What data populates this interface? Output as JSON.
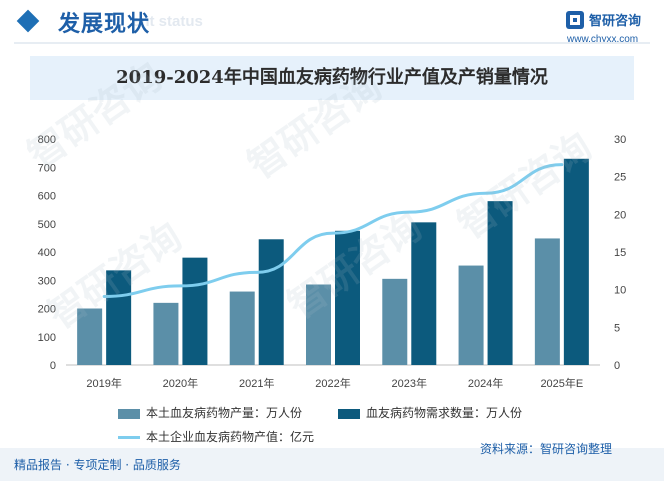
{
  "header": {
    "title": "发展现状",
    "subtitle": "ent status"
  },
  "logo": {
    "name": "智研咨询",
    "url": "www.chyxx.com"
  },
  "watermark": "智研咨询",
  "chart_data": {
    "type": "bar",
    "title": "2019-2024年中国血友病药物行业产值及产销量情况",
    "categories": [
      "2019年",
      "2020年",
      "2021年",
      "2022年",
      "2023年",
      "2024年",
      "2025年E"
    ],
    "y_left": {
      "lim": [
        0,
        800
      ],
      "ticks": [
        "0",
        "100",
        "200",
        "300",
        "400",
        "500",
        "600",
        "700",
        "800"
      ]
    },
    "y_right": {
      "lim": [
        0,
        30
      ],
      "ticks": [
        "0",
        "5",
        "10",
        "15",
        "20",
        "25",
        "30"
      ]
    },
    "series": [
      {
        "name": "本土血友病药物产量：万人份",
        "type": "bar",
        "axis": "left",
        "color": "#5b8fa8",
        "values": [
          200,
          220,
          260,
          285,
          305,
          352,
          448
        ]
      },
      {
        "name": "血友病药物需求数量：万人份",
        "type": "bar",
        "axis": "left",
        "color": "#0c5a7d",
        "values": [
          335,
          380,
          445,
          475,
          505,
          580,
          730
        ]
      },
      {
        "name": "本土企业血友病药物产值：亿元",
        "type": "line",
        "axis": "right",
        "color": "#7ecdee",
        "values": [
          9.1,
          10.5,
          12.3,
          17.5,
          20.3,
          22.8,
          26.6
        ]
      }
    ],
    "grid": false,
    "legend": "bottom"
  },
  "footer": {
    "left": "精品报告 · 专项定制 · 品质服务",
    "source": "资料来源：智研咨询整理"
  }
}
